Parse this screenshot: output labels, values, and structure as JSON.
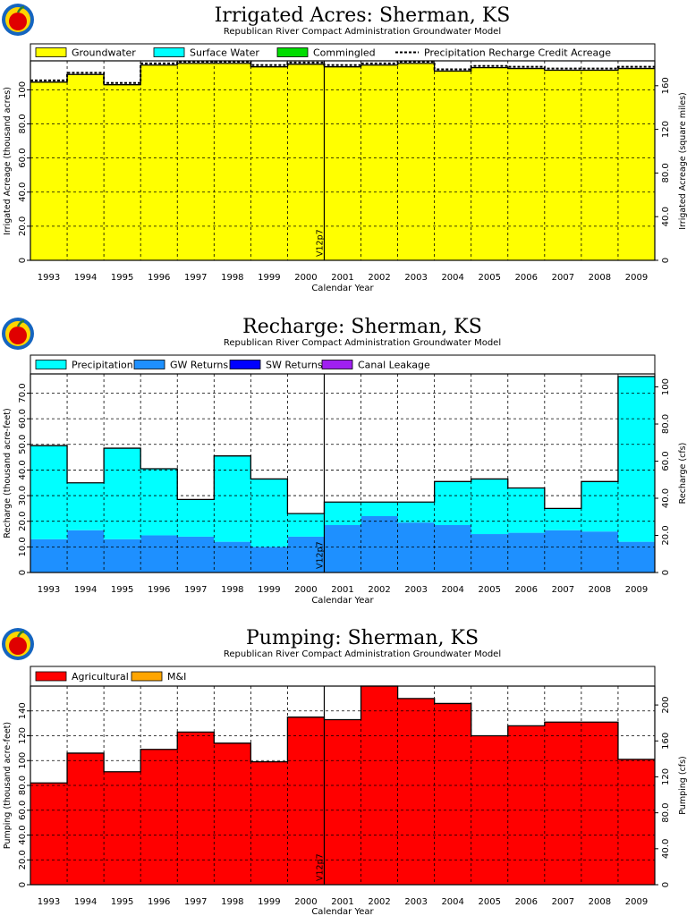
{
  "subtitle": "Republican River Compact Administration Groundwater Model",
  "xlabel": "Calendar Year",
  "stamp": "V12p7",
  "years": [
    "1993",
    "1994",
    "1995",
    "1996",
    "1997",
    "1998",
    "1999",
    "2000",
    "2001",
    "2002",
    "2003",
    "2004",
    "2005",
    "2006",
    "2007",
    "2008",
    "2009"
  ],
  "colors": {
    "groundwater": "#ffff00",
    "surface_water": "#00ffff",
    "commingled": "#00dd00",
    "precipitation": "#00ffff",
    "gw_returns": "#1e90ff",
    "sw_returns": "#0000ff",
    "canal_leakage": "#a020f0",
    "agricultural": "#ff0000",
    "mi": "#ffa500",
    "logo": "apple-logo-icon"
  },
  "chart_data": [
    {
      "type": "area",
      "title": "Irrigated Acres: Sherman, KS",
      "ylabel": "Irrigated Acreage (thousand acres)",
      "y2label": "Irrigated Acreage (square miles)",
      "ylim": [
        0,
        117
      ],
      "y2lim": [
        0,
        182.8
      ],
      "yticks": [
        "0",
        "20.0",
        "40.0",
        "60.0",
        "80.0",
        "100"
      ],
      "yticks_values": [
        0,
        20,
        40,
        60,
        80,
        100
      ],
      "y2ticks": [
        "0",
        "40.0",
        "80.0",
        "120",
        "160"
      ],
      "y2ticks_values": [
        0,
        40,
        80,
        120,
        160
      ],
      "legend": [
        "Groundwater",
        "Surface Water",
        "Commingled",
        "Precipitation Recharge Credit Acreage"
      ],
      "series": [
        {
          "name": "Groundwater",
          "values": [
            104.5,
            109.0,
            103.0,
            114.5,
            115.5,
            115.5,
            113.5,
            115.0,
            113.5,
            114.5,
            115.5,
            111.0,
            113.0,
            112.5,
            111.5,
            111.5,
            112.5
          ]
        },
        {
          "name": "Precipitation Recharge Credit Acreage",
          "values": [
            105.5,
            110.0,
            104.0,
            115.5,
            116.5,
            116.5,
            114.5,
            116.0,
            114.5,
            115.5,
            116.5,
            112.0,
            114.0,
            113.5,
            112.5,
            112.5,
            113.5
          ]
        }
      ]
    },
    {
      "type": "area",
      "title": "Recharge: Sherman, KS",
      "ylabel": "Recharge (thousand acre-feet)",
      "y2label": "Recharge (cfs)",
      "ylim": [
        0,
        77.5
      ],
      "y2lim": [
        0,
        107
      ],
      "yticks": [
        "0",
        "10.0",
        "20.0",
        "30.0",
        "40.0",
        "50.0",
        "60.0",
        "70.0"
      ],
      "yticks_values": [
        0,
        10,
        20,
        30,
        40,
        50,
        60,
        70
      ],
      "y2ticks": [
        "0",
        "20.0",
        "40.0",
        "60.0",
        "80.0",
        "100"
      ],
      "y2ticks_values": [
        0,
        20,
        40,
        60,
        80,
        100
      ],
      "legend": [
        "Precipitation",
        "GW Returns",
        "SW Returns",
        "Canal Leakage"
      ],
      "series": [
        {
          "name": "GW Returns",
          "values": [
            13.0,
            16.5,
            13.0,
            14.5,
            14.0,
            12.0,
            10.0,
            14.0,
            18.5,
            22.0,
            19.5,
            18.5,
            15.0,
            15.5,
            16.5,
            16.0,
            12.0
          ]
        },
        {
          "name": "Precipitation",
          "values": [
            36.5,
            18.5,
            35.5,
            26.0,
            14.5,
            33.5,
            26.5,
            9.0,
            9.0,
            5.5,
            8.0,
            17.0,
            21.5,
            17.5,
            8.5,
            19.5,
            64.5
          ]
        },
        {
          "name": "SW Returns",
          "values": [
            0,
            0,
            0,
            0,
            0,
            0,
            0,
            0,
            0,
            0,
            0,
            0,
            0,
            0,
            0,
            0,
            0
          ]
        },
        {
          "name": "Canal Leakage",
          "values": [
            0,
            0,
            0,
            0,
            0,
            0,
            0,
            0,
            0,
            0,
            0,
            0,
            0,
            0,
            0,
            0,
            0
          ]
        }
      ]
    },
    {
      "type": "area",
      "title": "Pumping: Sherman, KS",
      "ylabel": "Pumping (thousand acre-feet)",
      "y2label": "Pumping (cfs)",
      "ylim": [
        0,
        160
      ],
      "y2lim": [
        0,
        221
      ],
      "yticks": [
        "0",
        "20.0",
        "40.0",
        "60.0",
        "80.0",
        "100",
        "120",
        "140"
      ],
      "yticks_values": [
        0,
        20,
        40,
        60,
        80,
        100,
        120,
        140
      ],
      "y2ticks": [
        "0",
        "40.0",
        "80.0",
        "120",
        "160",
        "200"
      ],
      "y2ticks_values": [
        0,
        40,
        80,
        120,
        160,
        200
      ],
      "legend": [
        "Agricultural",
        "M&I"
      ],
      "series": [
        {
          "name": "Agricultural",
          "values": [
            82,
            106,
            91,
            109,
            123,
            114,
            99,
            135,
            133,
            160,
            150,
            146,
            120,
            128,
            131,
            131,
            101
          ]
        },
        {
          "name": "M&I",
          "values": [
            0,
            0,
            0,
            0,
            0,
            0,
            0,
            0,
            0,
            0,
            0,
            0,
            0,
            0,
            0,
            0,
            0
          ]
        }
      ]
    }
  ]
}
